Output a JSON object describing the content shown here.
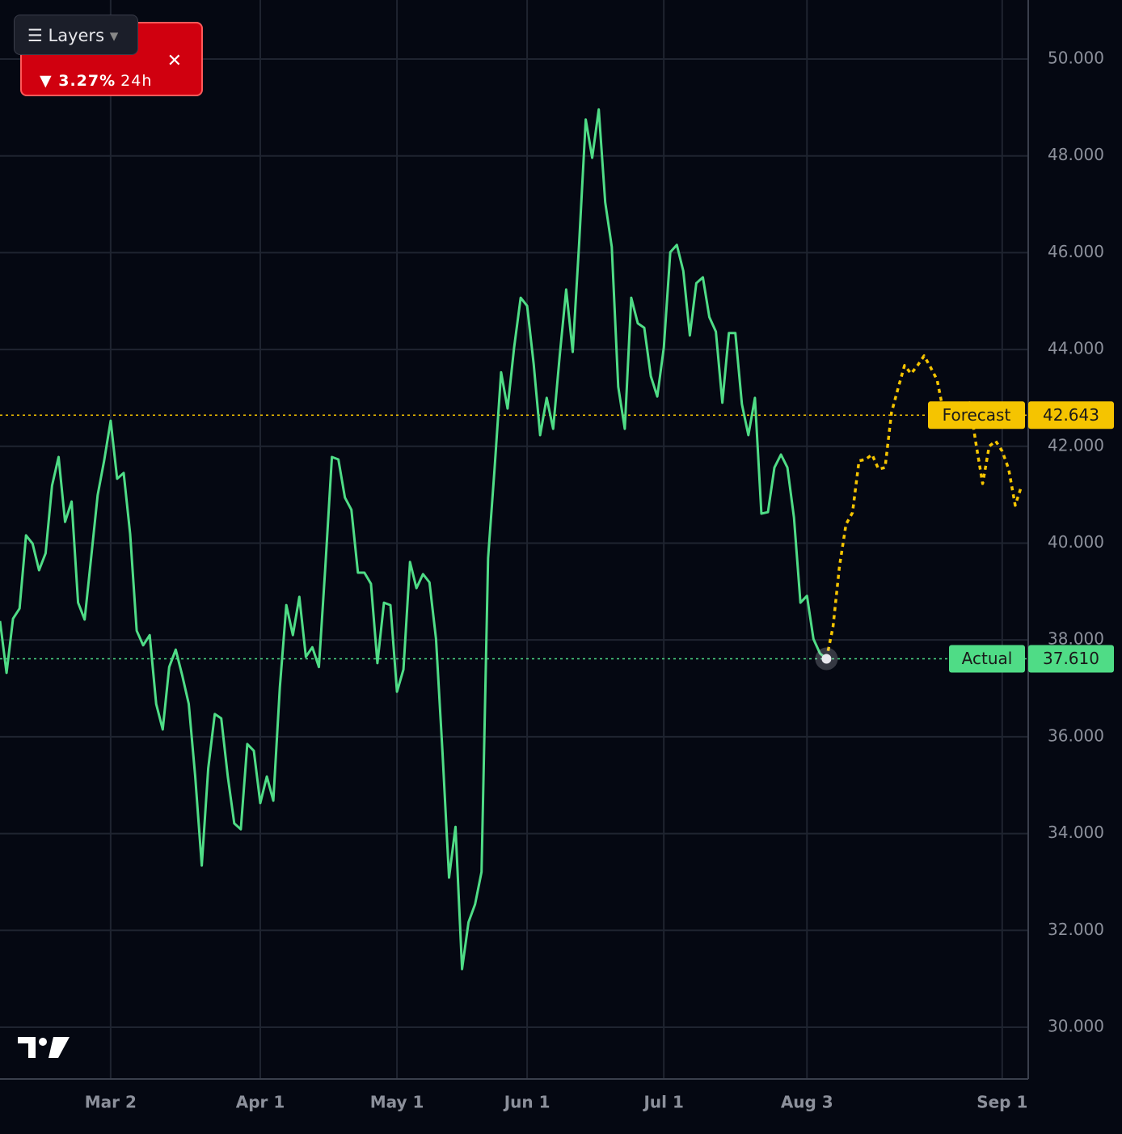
{
  "chart_data": {
    "type": "line",
    "ticker_card": {
      "change": "3.27%",
      "period": "24h"
    },
    "layers_button": "Layers",
    "xlim": [
      0,
      158
    ],
    "xticks": [
      {
        "value": 17,
        "label": "Mar 2"
      },
      {
        "value": 40,
        "label": "Apr 1"
      },
      {
        "value": 61,
        "label": "May 1"
      },
      {
        "value": 81,
        "label": "Jun 1"
      },
      {
        "value": 102,
        "label": "Jul 1"
      },
      {
        "value": 124,
        "label": "Aug 3"
      },
      {
        "value": 154,
        "label": "Sep 1"
      }
    ],
    "ylim": [
      28.93,
      51.22
    ],
    "yticks": [
      {
        "value": 30,
        "label": "30.000"
      },
      {
        "value": 32,
        "label": "32.000"
      },
      {
        "value": 34,
        "label": "34.000"
      },
      {
        "value": 36,
        "label": "36.000"
      },
      {
        "value": 38,
        "label": "38.000"
      },
      {
        "value": 40,
        "label": "40.000"
      },
      {
        "value": 42,
        "label": "42.000"
      },
      {
        "value": 44,
        "label": "44.000"
      },
      {
        "value": 46,
        "label": "46.000"
      },
      {
        "value": 48,
        "label": "48.000"
      },
      {
        "value": 50,
        "label": "50.000"
      }
    ],
    "grid": true,
    "series": [
      {
        "name": "Actual",
        "color": "#4fdc86",
        "dashed": false,
        "values": [
          38.39,
          37.32,
          38.44,
          38.65,
          40.16,
          39.99,
          39.44,
          39.79,
          41.19,
          41.78,
          40.44,
          40.86,
          38.77,
          38.42,
          39.69,
          40.99,
          41.7,
          42.53,
          41.33,
          41.45,
          40.19,
          38.19,
          37.89,
          38.1,
          36.68,
          36.15,
          37.44,
          37.8,
          37.27,
          36.68,
          35.18,
          33.34,
          35.35,
          36.47,
          36.38,
          35.18,
          34.21,
          34.09,
          35.85,
          35.71,
          34.63,
          35.18,
          34.68,
          37.02,
          38.72,
          38.1,
          38.89,
          37.65,
          37.85,
          37.44,
          39.52,
          41.78,
          41.73,
          40.94,
          40.69,
          39.39,
          39.39,
          39.16,
          37.52,
          38.77,
          38.72,
          36.93,
          37.39,
          39.61,
          39.07,
          39.36,
          39.19,
          38.02,
          35.68,
          33.09,
          34.14,
          31.2,
          32.17,
          32.54,
          33.21,
          39.69,
          41.53,
          43.53,
          42.78,
          44.04,
          45.07,
          44.9,
          43.7,
          42.23,
          43.0,
          42.36,
          43.87,
          45.24,
          43.95,
          46.21,
          48.75,
          47.96,
          48.96,
          47.04,
          46.12,
          43.23,
          42.36,
          45.07,
          44.54,
          44.45,
          43.45,
          43.03,
          44.04,
          46.01,
          46.16,
          45.62,
          44.29,
          45.37,
          45.49,
          44.67,
          44.37,
          42.9,
          44.34,
          44.34,
          42.87,
          42.23,
          43.0,
          40.61,
          40.64,
          41.56,
          41.83,
          41.56,
          40.53,
          38.77,
          38.91,
          38.02,
          37.72,
          37.61
        ]
      },
      {
        "name": "Forecast",
        "color": "#f5c400",
        "dashed": true,
        "values": [
          null,
          null,
          null,
          null,
          null,
          null,
          null,
          null,
          null,
          null,
          null,
          null,
          null,
          null,
          null,
          null,
          null,
          null,
          null,
          null,
          null,
          null,
          null,
          null,
          null,
          null,
          null,
          null,
          null,
          null,
          null,
          null,
          null,
          null,
          null,
          null,
          null,
          null,
          null,
          null,
          null,
          null,
          null,
          null,
          null,
          null,
          null,
          null,
          null,
          null,
          null,
          null,
          null,
          null,
          null,
          null,
          null,
          null,
          null,
          null,
          null,
          null,
          null,
          null,
          null,
          null,
          null,
          null,
          null,
          null,
          null,
          null,
          null,
          null,
          null,
          null,
          null,
          null,
          null,
          null,
          null,
          null,
          null,
          null,
          null,
          null,
          null,
          null,
          null,
          null,
          null,
          null,
          null,
          null,
          null,
          null,
          null,
          null,
          null,
          null,
          null,
          null,
          null,
          null,
          null,
          null,
          null,
          null,
          null,
          null,
          null,
          null,
          null,
          null,
          null,
          null,
          null,
          null,
          null,
          null,
          null,
          null,
          null,
          null,
          null,
          null,
          null,
          37.61,
          38.27,
          39.52,
          40.39,
          40.63,
          41.7,
          41.73,
          41.83,
          41.53,
          41.56,
          42.7,
          43.2,
          43.67,
          43.5,
          43.67,
          43.87,
          43.63,
          43.37,
          42.7,
          42.53,
          42.51,
          42.56,
          42.9,
          42.03,
          41.23,
          42.0,
          42.11,
          41.9,
          41.53,
          40.78,
          41.19
        ]
      }
    ],
    "price_lines": [
      {
        "name": "Forecast",
        "value": 42.643,
        "color": "#f5c400"
      },
      {
        "name": "Actual",
        "value": 37.61,
        "value_label": "37.610",
        "color": "#4fdc86"
      }
    ]
  }
}
